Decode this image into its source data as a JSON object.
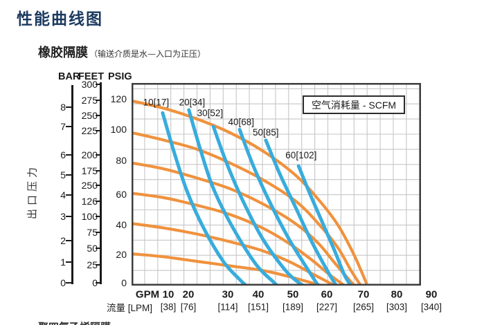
{
  "title": "性能曲线图",
  "subtitle": {
    "main": "橡胶隔膜",
    "paren": "（输送介质是水—入口为正压）"
  },
  "ylabel": "出口压力",
  "legend": {
    "text": "空气消耗量 - SCFM"
  },
  "axes": {
    "bar": {
      "header": "BAR",
      "labels": [
        "8",
        "7",
        "6",
        "5",
        "4",
        "3",
        "2",
        "1",
        "0"
      ]
    },
    "feet": {
      "header": "FEET",
      "labels": [
        "300",
        "275",
        "250",
        "225",
        "200",
        "175",
        "250",
        "126",
        "100",
        "75",
        "50",
        "25",
        "0"
      ]
    },
    "psig": {
      "header": "PSIG",
      "labels": [
        "120",
        "100",
        "80",
        "60",
        "40",
        "20",
        "0"
      ]
    },
    "gpm": {
      "unit": "GPM",
      "labels": [
        "10",
        "20",
        "30",
        "40",
        "50",
        "60",
        "70",
        "80",
        "90"
      ]
    },
    "lpm": {
      "unit": "流量 [LPM]",
      "labels": [
        "[38]",
        "[76]",
        "[114]",
        "[151]",
        "[189]",
        "[227]",
        "[265]",
        "[303]",
        "[340]"
      ]
    }
  },
  "next_section_clipped": "聚四氟乙烯隔膜",
  "colors": {
    "curve_orange": "#F0923E",
    "curve_blue": "#38ACDC",
    "title_navy": "#1C3A5F",
    "grid": "#C6C6C6",
    "plot_border": "#3D3D3D",
    "text": "#1a1a1a"
  },
  "chart_data": {
    "type": "line",
    "title": "性能曲线图 — 橡胶隔膜（输送介质是水—入口为正压）",
    "xlabel": "流量 GPM [LPM]",
    "ylabel": "出口压力 BAR / FEET / PSIG",
    "legend": "空气消耗量 - SCFM",
    "grid": true,
    "x_unit": "GPM",
    "y_unit": "PSIG",
    "xlim": [
      0,
      90
    ],
    "ylim": [
      0,
      134
    ],
    "x_axis": {
      "gpm_ticks": [
        10,
        20,
        30,
        40,
        50,
        60,
        70,
        80,
        90
      ],
      "lpm_ticks": [
        38,
        76,
        114,
        151,
        189,
        227,
        265,
        303,
        340
      ]
    },
    "y_axis": {
      "bar_ticks": [
        8,
        7,
        6,
        5,
        4,
        3,
        2,
        1,
        0
      ],
      "feet_tick_labels_as_printed": [
        300,
        275,
        250,
        225,
        200,
        175,
        250,
        126,
        100,
        75,
        50,
        25,
        0
      ],
      "psig_ticks": [
        120,
        100,
        80,
        60,
        40,
        20,
        0
      ]
    },
    "performance_curves": [
      {
        "name": "discharge-120psig",
        "start_psig": 120,
        "points": [
          [
            0,
            122
          ],
          [
            10,
            117
          ],
          [
            20,
            110
          ],
          [
            30,
            101
          ],
          [
            40,
            89
          ],
          [
            50,
            73
          ],
          [
            57,
            57
          ],
          [
            63,
            40
          ],
          [
            68,
            20
          ],
          [
            72,
            0
          ]
        ]
      },
      {
        "name": "discharge-100psig",
        "start_psig": 100,
        "points": [
          [
            0,
            101
          ],
          [
            10,
            96
          ],
          [
            20,
            90
          ],
          [
            30,
            81
          ],
          [
            40,
            70
          ],
          [
            50,
            56
          ],
          [
            57,
            41
          ],
          [
            63,
            25
          ],
          [
            67,
            10
          ],
          [
            70,
            0
          ]
        ]
      },
      {
        "name": "discharge-80psig",
        "start_psig": 80,
        "points": [
          [
            0,
            81
          ],
          [
            10,
            77
          ],
          [
            20,
            71
          ],
          [
            30,
            64
          ],
          [
            40,
            54
          ],
          [
            50,
            41
          ],
          [
            57,
            28
          ],
          [
            62,
            15
          ],
          [
            68,
            0
          ]
        ]
      },
      {
        "name": "discharge-60psig",
        "start_psig": 60,
        "points": [
          [
            0,
            61
          ],
          [
            10,
            58
          ],
          [
            20,
            53
          ],
          [
            30,
            47
          ],
          [
            40,
            38
          ],
          [
            48,
            28
          ],
          [
            55,
            17
          ],
          [
            60,
            8
          ],
          [
            65,
            0
          ]
        ]
      },
      {
        "name": "discharge-40psig",
        "start_psig": 40,
        "points": [
          [
            0,
            41
          ],
          [
            10,
            38
          ],
          [
            20,
            34
          ],
          [
            30,
            29
          ],
          [
            40,
            23
          ],
          [
            48,
            16
          ],
          [
            55,
            8
          ],
          [
            62,
            0
          ]
        ]
      },
      {
        "name": "discharge-20psig",
        "start_psig": 20,
        "points": [
          [
            0,
            21
          ],
          [
            10,
            19
          ],
          [
            20,
            16
          ],
          [
            30,
            13
          ],
          [
            40,
            10
          ],
          [
            48,
            6
          ],
          [
            58,
            0
          ]
        ]
      }
    ],
    "air_consumption_curves": [
      {
        "name": "air-10-scfm",
        "label": "10[17]",
        "label_at": [
          3.5,
          124
        ],
        "points": [
          [
            9.5,
            114
          ],
          [
            13,
            88
          ],
          [
            17,
            62
          ],
          [
            22,
            38
          ],
          [
            28,
            16
          ],
          [
            33,
            4
          ],
          [
            35,
            0
          ]
        ]
      },
      {
        "name": "air-20-scfm",
        "label": "20[34]",
        "label_at": [
          14.5,
          124
        ],
        "points": [
          [
            17.5,
            116
          ],
          [
            21,
            90
          ],
          [
            25,
            64
          ],
          [
            31,
            38
          ],
          [
            38,
            14
          ],
          [
            43,
            3
          ],
          [
            44.5,
            0
          ]
        ]
      },
      {
        "name": "air-30-scfm",
        "label": "30[52]",
        "label_at": [
          20,
          117
        ],
        "points": [
          [
            25,
            105
          ],
          [
            29,
            81
          ],
          [
            34,
            56
          ],
          [
            40,
            31
          ],
          [
            47,
            10
          ],
          [
            51,
            2
          ],
          [
            52.5,
            0
          ]
        ]
      },
      {
        "name": "air-40-scfm",
        "label": "40[68]",
        "label_at": [
          29.5,
          111
        ],
        "points": [
          [
            33,
            103
          ],
          [
            37,
            80
          ],
          [
            42,
            56
          ],
          [
            48,
            31
          ],
          [
            54,
            10
          ],
          [
            57,
            0
          ]
        ]
      },
      {
        "name": "air-50-scfm",
        "label": "50[85]",
        "label_at": [
          37,
          104
        ],
        "points": [
          [
            41,
            96
          ],
          [
            45,
            75
          ],
          [
            50,
            52
          ],
          [
            55,
            29
          ],
          [
            60,
            9
          ],
          [
            62.5,
            0
          ]
        ]
      },
      {
        "name": "air-60-scfm",
        "label": "60[102]",
        "label_at": [
          47,
          89
        ],
        "points": [
          [
            51,
            79
          ],
          [
            54,
            63
          ],
          [
            58,
            43
          ],
          [
            62,
            23
          ],
          [
            65,
            7
          ],
          [
            67,
            0
          ]
        ]
      }
    ]
  }
}
